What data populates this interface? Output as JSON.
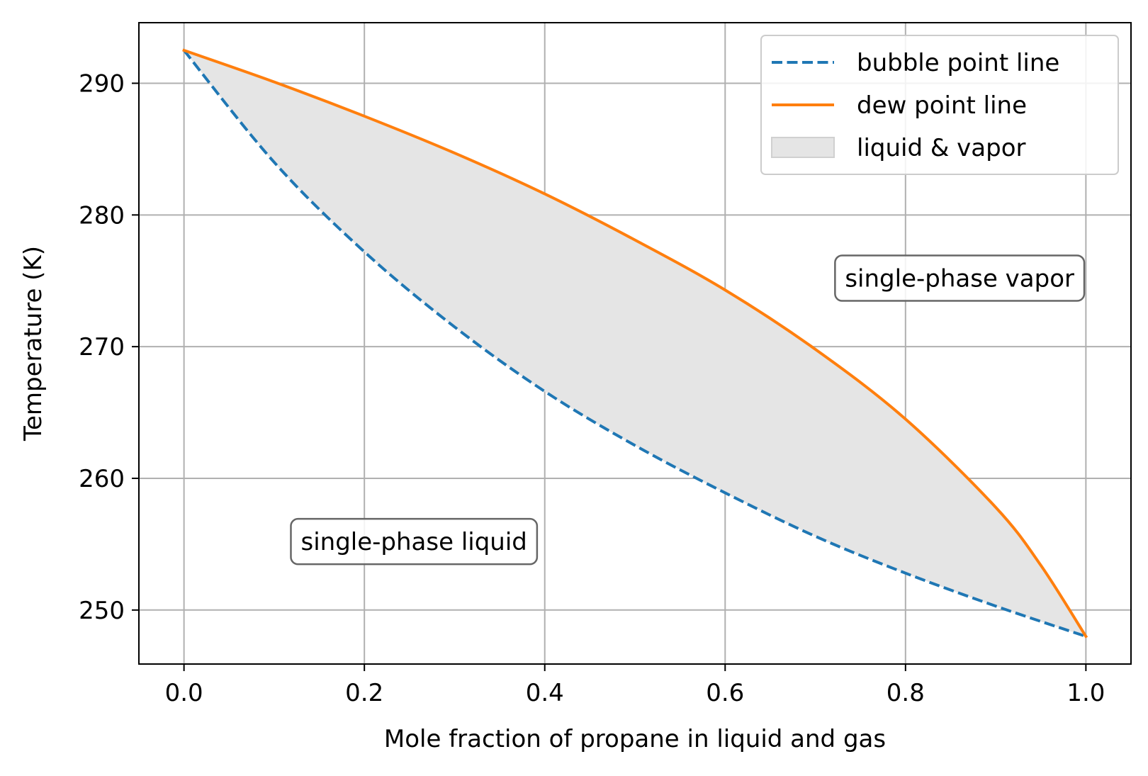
{
  "chart_data": {
    "type": "line",
    "title": "",
    "xlabel": "Mole fraction of propane in liquid and gas",
    "ylabel": "Temperature (K)",
    "xlim": [
      -0.05,
      1.05
    ],
    "ylim": [
      245.9,
      294.6
    ],
    "xticks": [
      0.0,
      0.2,
      0.4,
      0.6,
      0.8,
      1.0
    ],
    "xtick_labels": [
      "0.0",
      "0.2",
      "0.4",
      "0.6",
      "0.8",
      "1.0"
    ],
    "yticks": [
      250,
      260,
      270,
      280,
      290
    ],
    "ytick_labels": [
      "250",
      "260",
      "270",
      "280",
      "290"
    ],
    "grid": true,
    "legend_position": "top-right",
    "series": [
      {
        "name": "bubble point line",
        "style": "dashed",
        "color": "#1f77b4",
        "x": [
          0.0,
          0.1,
          0.2,
          0.3,
          0.4,
          0.5,
          0.6,
          0.7,
          0.8,
          0.9,
          1.0
        ],
        "y": [
          292.5,
          284.0,
          277.2,
          271.5,
          266.6,
          262.5,
          258.9,
          255.6,
          252.8,
          250.3,
          248.0
        ]
      },
      {
        "name": "dew point line",
        "style": "solid",
        "color": "#ff7f0e",
        "x": [
          0.0,
          0.1,
          0.2,
          0.3,
          0.4,
          0.5,
          0.6,
          0.7,
          0.8,
          0.9,
          0.95,
          1.0
        ],
        "y": [
          292.5,
          290.1,
          287.5,
          284.7,
          281.6,
          278.1,
          274.3,
          269.8,
          264.5,
          257.8,
          253.4,
          248.0
        ]
      }
    ],
    "fill": {
      "name": "liquid & vapor",
      "color": "#e5e5e5",
      "between": [
        "bubble point line",
        "dew point line"
      ]
    },
    "annotations": [
      {
        "text": "single-phase vapor",
        "x": 0.86,
        "y": 275.2
      },
      {
        "text": "single-phase liquid",
        "x": 0.255,
        "y": 255.2
      }
    ]
  }
}
